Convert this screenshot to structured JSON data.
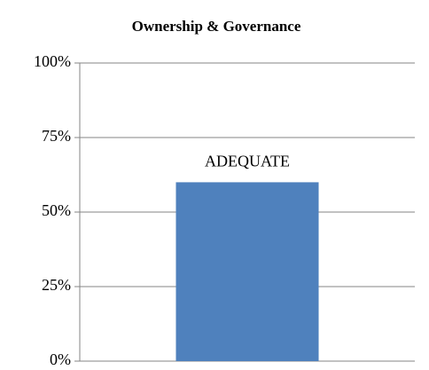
{
  "chart_data": {
    "type": "bar",
    "title": "Ownership & Governance",
    "categories": [
      null
    ],
    "values": [
      60
    ],
    "value_labels": [
      "ADEQUATE"
    ],
    "color": "#4f81bd",
    "ylim": [
      0,
      100
    ],
    "yticks": [
      {
        "value": 0,
        "label": "0%"
      },
      {
        "value": 25,
        "label": "25%"
      },
      {
        "value": 50,
        "label": "50%"
      },
      {
        "value": 75,
        "label": "75%"
      },
      {
        "value": 100,
        "label": "100%"
      }
    ],
    "grid": true
  }
}
